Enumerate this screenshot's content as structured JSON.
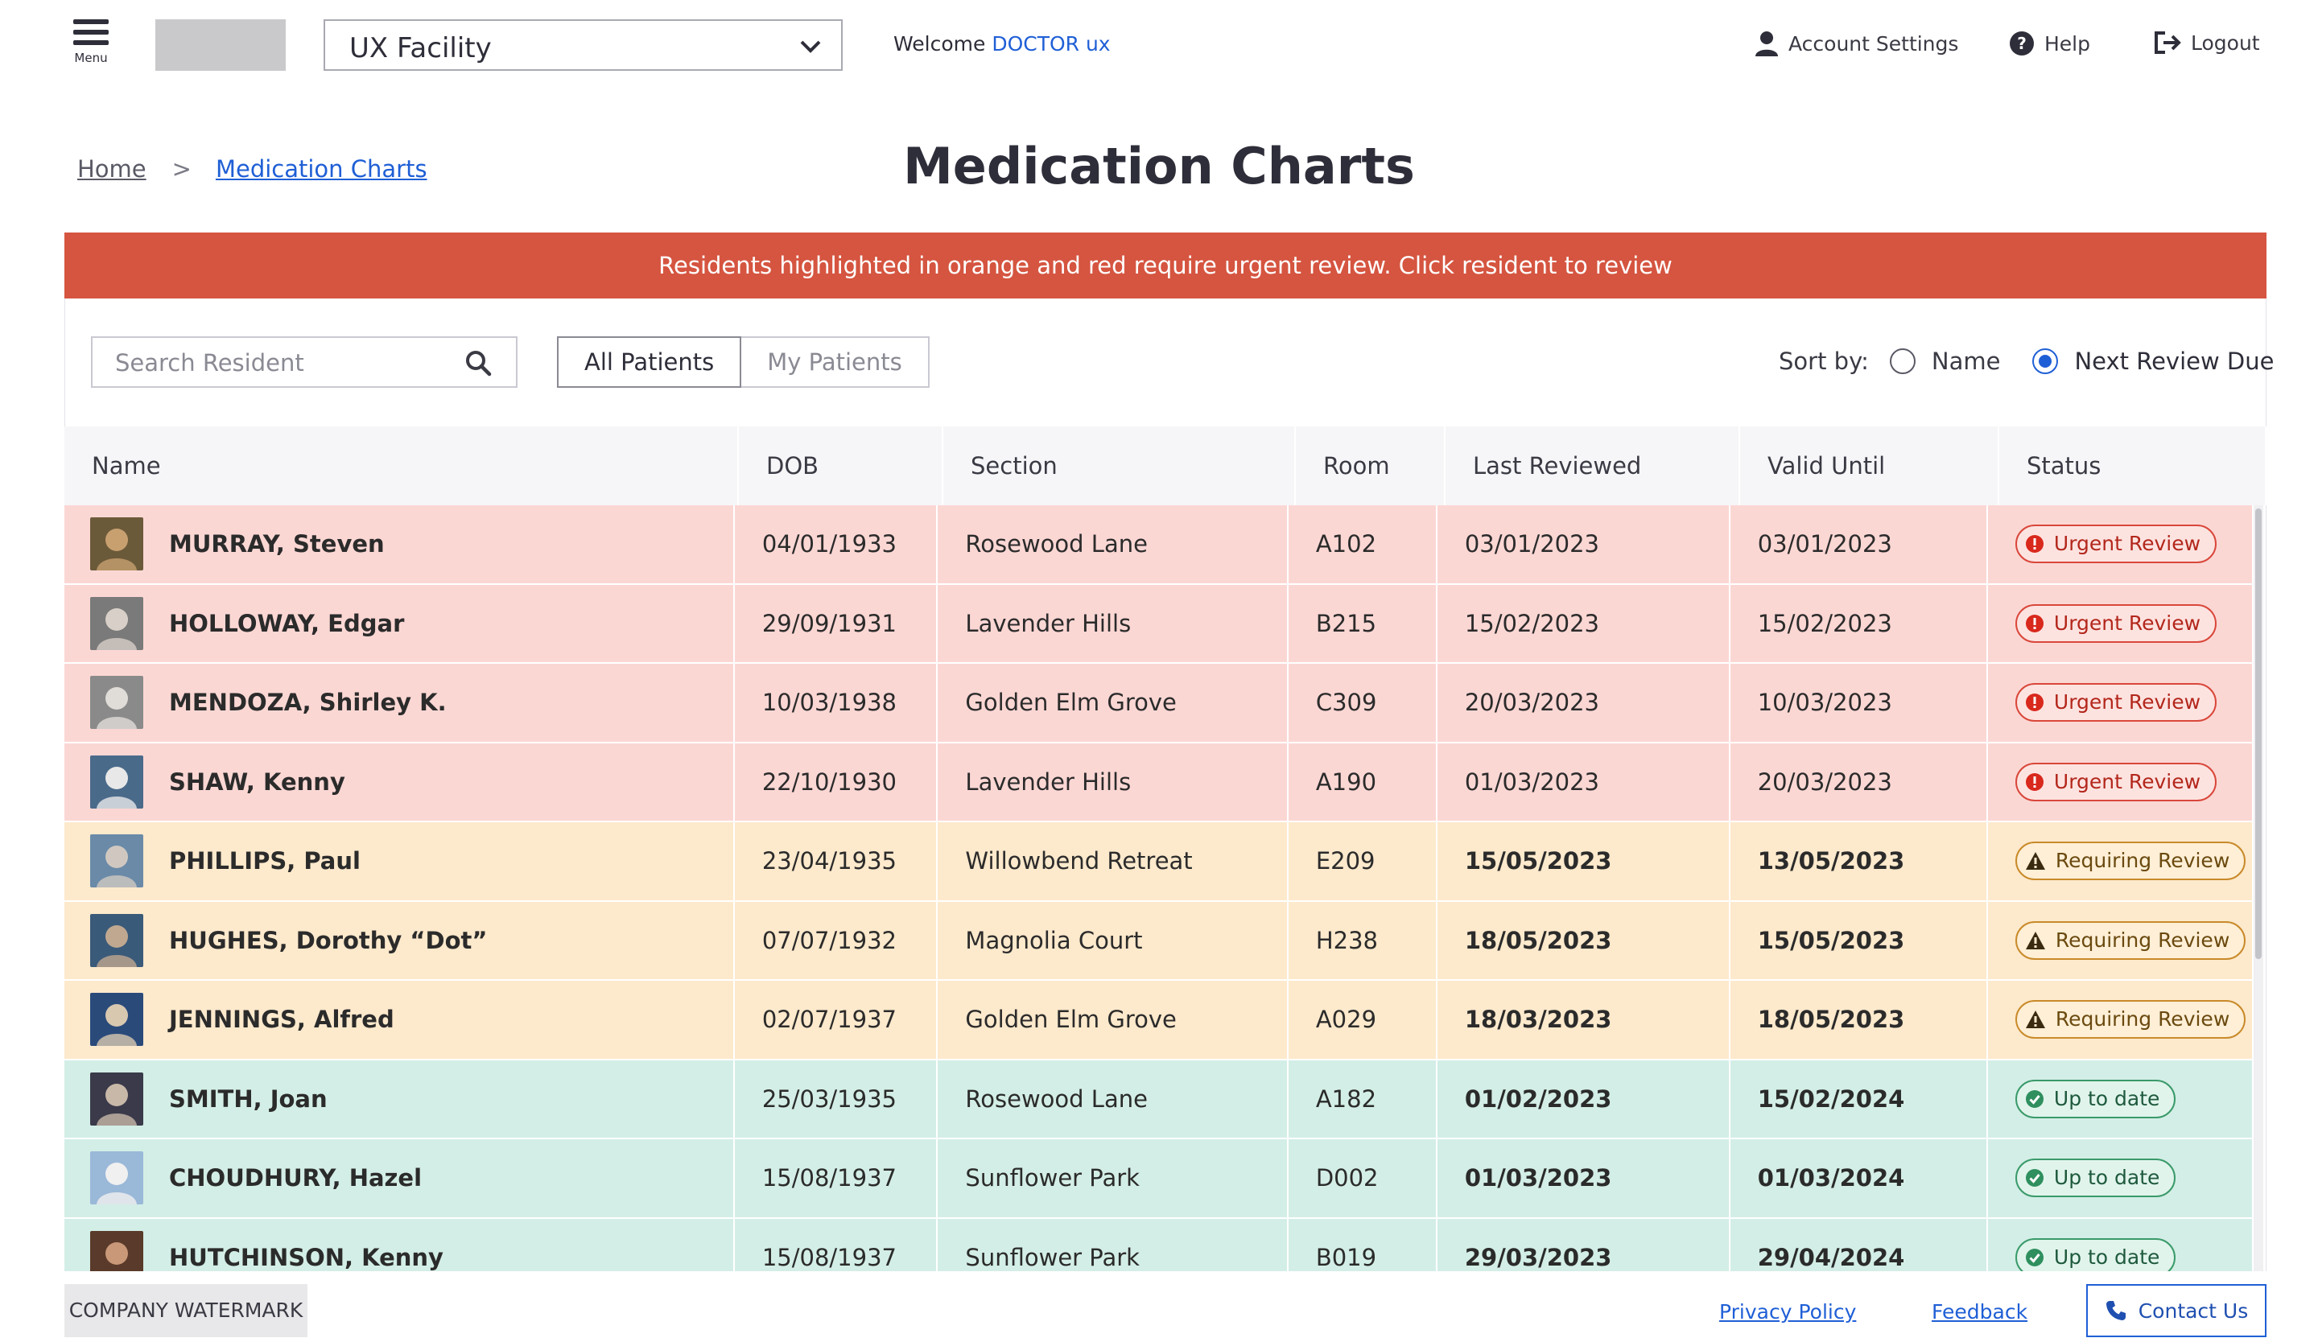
{
  "header": {
    "menu_label": "Menu",
    "facility": "UX Facility",
    "welcome_prefix": "Welcome",
    "user_name": "DOCTOR ux",
    "account_settings": "Account Settings",
    "help": "Help",
    "logout": "Logout"
  },
  "breadcrumb": {
    "home": "Home",
    "separator": ">",
    "current": "Medication Charts"
  },
  "page_title": "Medication Charts",
  "alert": "Residents highlighted in orange and red require urgent review. Click resident to review",
  "toolbar": {
    "search_placeholder": "Search Resident",
    "tab_all": "All Patients",
    "tab_mine": "My Patients",
    "sort_label": "Sort by:",
    "sort_name": "Name",
    "sort_next_review": "Next Review Due",
    "sort_selected": "Next Review Due"
  },
  "table": {
    "columns": [
      "Name",
      "DOB",
      "Section",
      "Room",
      "Last Reviewed",
      "Valid Until",
      "Status"
    ],
    "rows": [
      {
        "name": "MURRAY, Steven",
        "dob": "04/01/1933",
        "section": "Rosewood Lane",
        "room": "A102",
        "last": "03/01/2023",
        "valid": "03/01/2023",
        "status": "Urgent Review",
        "level": "urgent"
      },
      {
        "name": "HOLLOWAY, Edgar",
        "dob": "29/09/1931",
        "section": "Lavender Hills",
        "room": "B215",
        "last": "15/02/2023",
        "valid": "15/02/2023",
        "status": "Urgent Review",
        "level": "urgent"
      },
      {
        "name": "MENDOZA, Shirley K.",
        "dob": "10/03/1938",
        "section": "Golden Elm Grove",
        "room": "C309",
        "last": "20/03/2023",
        "valid": "10/03/2023",
        "status": "Urgent Review",
        "level": "urgent"
      },
      {
        "name": "SHAW, Kenny",
        "dob": "22/10/1930",
        "section": "Lavender Hills",
        "room": "A190",
        "last": "01/03/2023",
        "valid": "20/03/2023",
        "status": "Urgent Review",
        "level": "urgent"
      },
      {
        "name": "PHILLIPS, Paul",
        "dob": "23/04/1935",
        "section": "Willowbend Retreat",
        "room": "E209",
        "last": "15/05/2023",
        "valid": "13/05/2023",
        "status": "Requiring Review",
        "level": "requiring"
      },
      {
        "name": "HUGHES, Dorothy “Dot”",
        "dob": "07/07/1932",
        "section": "Magnolia Court",
        "room": "H238",
        "last": "18/05/2023",
        "valid": "15/05/2023",
        "status": "Requiring Review",
        "level": "requiring"
      },
      {
        "name": "JENNINGS, Alfred",
        "dob": "02/07/1937",
        "section": "Golden Elm Grove",
        "room": "A029",
        "last": "18/03/2023",
        "valid": "18/05/2023",
        "status": "Requiring Review",
        "level": "requiring"
      },
      {
        "name": "SMITH, Joan",
        "dob": "25/03/1935",
        "section": "Rosewood Lane",
        "room": "A182",
        "last": "01/02/2023",
        "valid": "15/02/2024",
        "status": "Up to date",
        "level": "uptodate"
      },
      {
        "name": "CHOUDHURY, Hazel",
        "dob": "15/08/1937",
        "section": "Sunflower Park",
        "room": "D002",
        "last": "01/03/2023",
        "valid": "01/03/2024",
        "status": "Up to date",
        "level": "uptodate"
      },
      {
        "name": "HUTCHINSON, Kenny",
        "dob": "15/08/1937",
        "section": "Sunflower Park",
        "room": "B019",
        "last": "29/03/2023",
        "valid": "29/04/2024",
        "status": "Up to date",
        "level": "uptodate"
      }
    ]
  },
  "footer": {
    "watermark": "COMPANY WATERMARK",
    "privacy": "Privacy Policy",
    "feedback": "Feedback",
    "contact": "Contact Us"
  },
  "colors": {
    "accent": "#1f5fd6",
    "alert": "#d55540",
    "urgent_row": "#fbd7d4",
    "requiring_row": "#fde9cc",
    "uptodate_row": "#d3eee6"
  }
}
